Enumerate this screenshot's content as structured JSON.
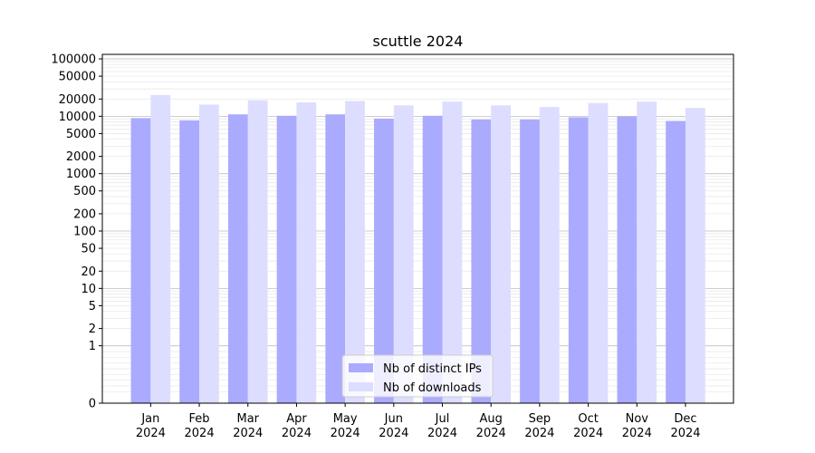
{
  "chart_data": {
    "type": "bar",
    "title": "scuttle 2024",
    "xlabel": "",
    "ylabel": "",
    "yscale": "symlog",
    "ylim": [
      0,
      120000
    ],
    "yticks": [
      0,
      1,
      2,
      5,
      10,
      20,
      50,
      100,
      200,
      500,
      1000,
      2000,
      5000,
      10000,
      20000,
      50000,
      100000
    ],
    "ytick_labels": [
      "0",
      "1",
      "2",
      "5",
      "10",
      "20",
      "50",
      "100",
      "200",
      "500",
      "1000",
      "2000",
      "5000",
      "10000",
      "20000",
      "50000",
      "100000"
    ],
    "categories": [
      "Jan",
      "Feb",
      "Mar",
      "Apr",
      "May",
      "Jun",
      "Jul",
      "Aug",
      "Sep",
      "Oct",
      "Nov",
      "Dec"
    ],
    "category_sublabels": [
      "2024",
      "2024",
      "2024",
      "2024",
      "2024",
      "2024",
      "2024",
      "2024",
      "2024",
      "2024",
      "2024",
      "2024"
    ],
    "grid": true,
    "legend_position": "lower-center",
    "series": [
      {
        "name": "Nb of distinct IPs",
        "color": "#aaaaff",
        "values": [
          9300,
          8500,
          10800,
          10200,
          10800,
          9100,
          10200,
          8800,
          8800,
          9600,
          9900,
          8300
        ]
      },
      {
        "name": "Nb of downloads",
        "color": "#ddddff",
        "values": [
          23500,
          16000,
          19000,
          17500,
          18500,
          15500,
          18000,
          15500,
          14500,
          17000,
          18000,
          14000
        ]
      }
    ]
  }
}
